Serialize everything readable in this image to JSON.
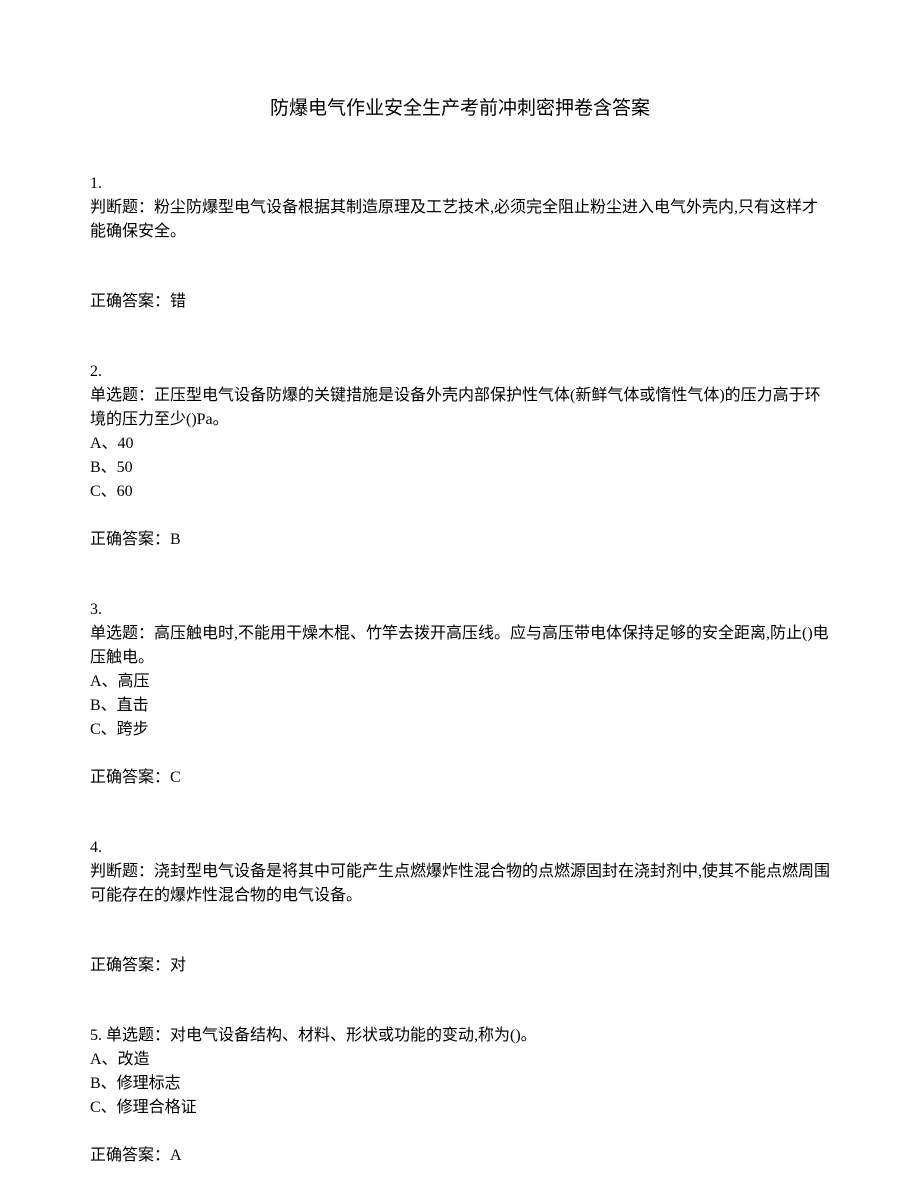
{
  "title": "防爆电气作业安全生产考前冲刺密押卷含答案",
  "questions": [
    {
      "number": "1.",
      "prompt": "判断题：粉尘防爆型电气设备根据其制造原理及工艺技术,必须完全阻止粉尘进入电气外壳内,只有这样才能确保安全。",
      "options": [],
      "answer_label": "正确答案：",
      "answer": "错"
    },
    {
      "number": "2.",
      "prompt": "单选题：正压型电气设备防爆的关键措施是设备外壳内部保护性气体(新鲜气体或惰性气体)的压力高于环境的压力至少()Pa。",
      "options": [
        "A、40",
        "B、50",
        "C、60"
      ],
      "answer_label": "正确答案：",
      "answer": "B"
    },
    {
      "number": "3.",
      "prompt": "单选题：高压触电时,不能用干燥木棍、竹竿去拨开高压线。应与高压带电体保持足够的安全距离,防止()电压触电。",
      "options": [
        "A、高压",
        "B、直击",
        "C、跨步"
      ],
      "answer_label": "正确答案：",
      "answer": "C"
    },
    {
      "number": "4.",
      "prompt": "判断题：浇封型电气设备是将其中可能产生点燃爆炸性混合物的点燃源固封在浇封剂中,使其不能点燃周围可能存在的爆炸性混合物的电气设备。",
      "options": [],
      "answer_label": "正确答案：",
      "answer": "对"
    },
    {
      "number": "5.",
      "prompt_inline": "单选题：对电气设备结构、材料、形状或功能的变动,称为()。",
      "options": [
        "A、改造",
        "B、修理标志",
        "C、修理合格证"
      ],
      "answer_label": "正确答案：",
      "answer": "A"
    }
  ]
}
